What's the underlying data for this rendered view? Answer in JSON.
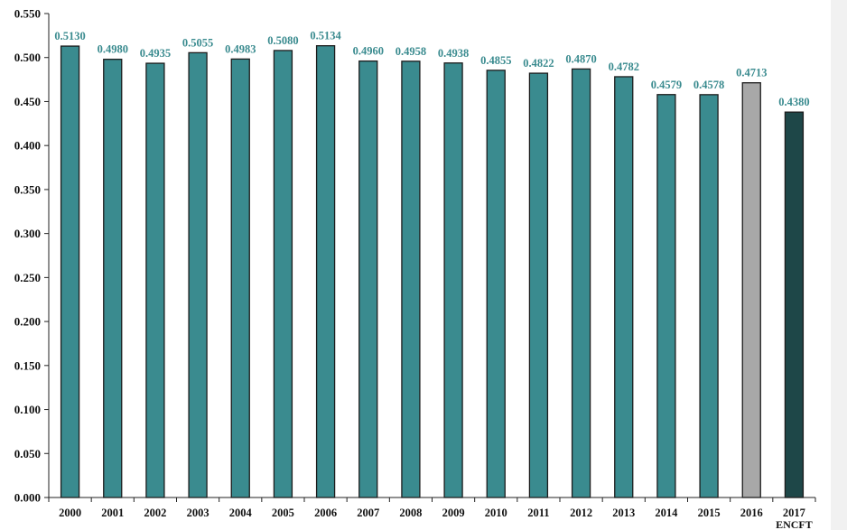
{
  "chart_data": {
    "type": "bar",
    "categories": [
      "2000",
      "2001",
      "2002",
      "2003",
      "2004",
      "2005",
      "2006",
      "2007",
      "2008",
      "2009",
      "2010",
      "2011",
      "2012",
      "2013",
      "2014",
      "2015",
      "2016",
      "2017"
    ],
    "category_sublabels": {
      "2017": "ENCFT"
    },
    "values": [
      0.513,
      0.498,
      0.4935,
      0.5055,
      0.4983,
      0.508,
      0.5134,
      0.496,
      0.4958,
      0.4938,
      0.4855,
      0.4822,
      0.487,
      0.4782,
      0.4579,
      0.4578,
      0.4713,
      0.438
    ],
    "data_labels": [
      "0.5130",
      "0.4980",
      "0.4935",
      "0.5055",
      "0.4983",
      "0.5080",
      "0.5134",
      "0.4960",
      "0.4958",
      "0.4938",
      "0.4855",
      "0.4822",
      "0.4870",
      "0.4782",
      "0.4579",
      "0.4578",
      "0.4713",
      "0.4380"
    ],
    "ylim": [
      0,
      0.55
    ],
    "yticks": [
      "0.000",
      "0.050",
      "0.100",
      "0.150",
      "0.200",
      "0.250",
      "0.300",
      "0.350",
      "0.400",
      "0.450",
      "0.500",
      "0.550"
    ],
    "grid": false,
    "colors": {
      "default_bar": "#3a8b8f",
      "bar_2016": "#a8a8a8",
      "bar_2017": "#1e4748",
      "bar_stroke": "#1c1c1c",
      "label_color": "#3a8b8f"
    }
  }
}
